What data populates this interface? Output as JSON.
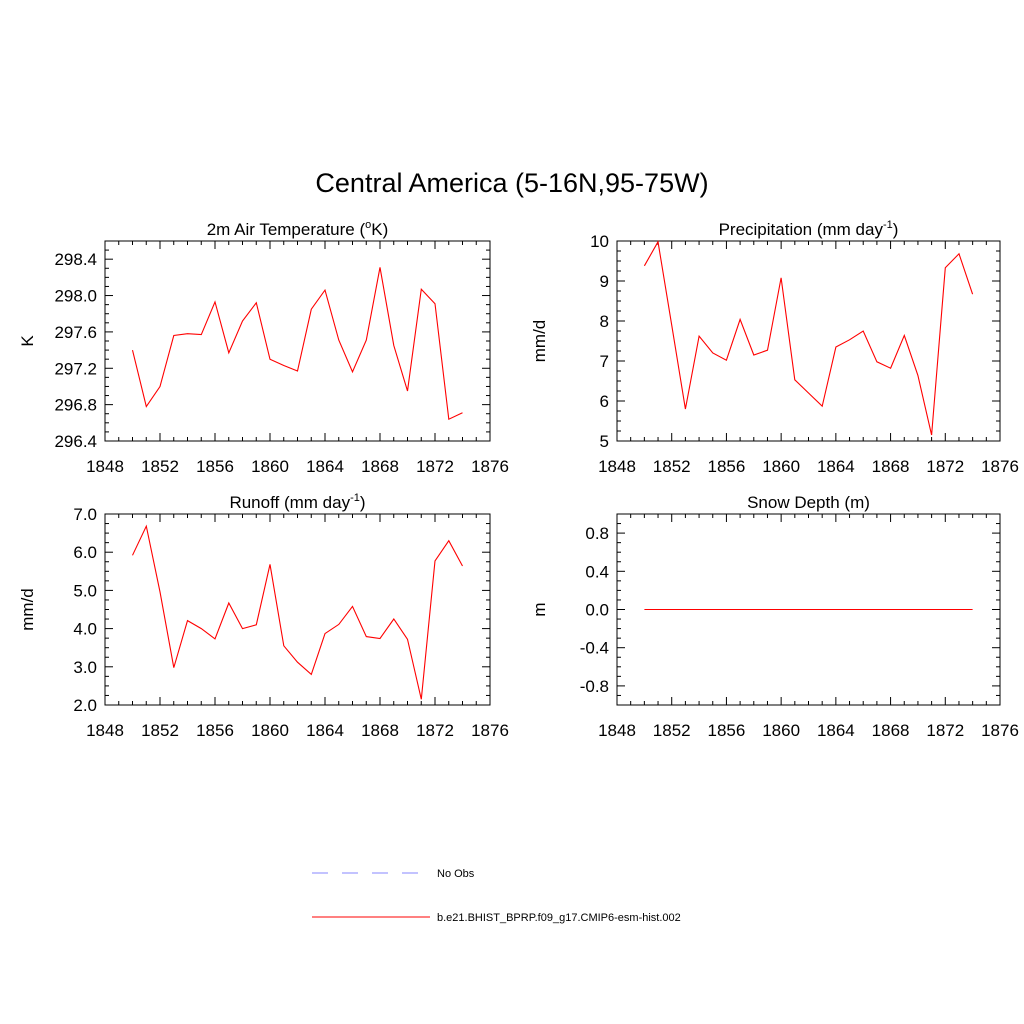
{
  "title": "Central America (5-16N,95-75W)",
  "colors": {
    "model": "#ff0000",
    "obs": "#9f9fff"
  },
  "legend": [
    {
      "label": "No Obs",
      "style": "dashed",
      "color": "#9f9fff"
    },
    {
      "label": "b.e21.BHIST_BPRP.f09_g17.CMIP6-esm-hist.002",
      "style": "solid",
      "color": "#ff0000"
    }
  ],
  "chart_data": [
    {
      "type": "line",
      "title": "2m Air Temperature (",
      "title_sup": "o",
      "title_after": "K)",
      "ylabel": "K",
      "xlim": [
        1848,
        1876
      ],
      "ylim": [
        296.4,
        298.6
      ],
      "xticks": [
        "1848",
        "1852",
        "1856",
        "1860",
        "1864",
        "1868",
        "1872",
        "1876"
      ],
      "yticks": [
        "296.4",
        "296.8",
        "297.2",
        "297.6",
        "298.0",
        "298.4"
      ],
      "x": [
        1850,
        1851,
        1852,
        1853,
        1854,
        1855,
        1856,
        1857,
        1858,
        1859,
        1860,
        1861,
        1862,
        1863,
        1864,
        1865,
        1866,
        1867,
        1868,
        1869,
        1870,
        1871,
        1872,
        1873,
        1874
      ],
      "series": [
        {
          "values": [
            297.4,
            296.78,
            297.0,
            297.56,
            297.58,
            297.57,
            297.93,
            297.37,
            297.72,
            297.92,
            297.3,
            297.23,
            297.17,
            297.85,
            298.06,
            297.51,
            297.16,
            297.51,
            298.31,
            297.45,
            296.95,
            298.07,
            297.91,
            296.64,
            296.71
          ]
        }
      ]
    },
    {
      "type": "line",
      "title": "Precipitation (mm day",
      "title_sup": "-1",
      "title_after": ")",
      "ylabel": "mm/d",
      "xlim": [
        1848,
        1876
      ],
      "ylim": [
        5,
        10
      ],
      "xticks": [
        "1848",
        "1852",
        "1856",
        "1860",
        "1864",
        "1868",
        "1872",
        "1876"
      ],
      "yticks": [
        "5",
        "6",
        "7",
        "8",
        "9",
        "10"
      ],
      "x": [
        1850,
        1851,
        1852,
        1853,
        1854,
        1855,
        1856,
        1857,
        1858,
        1859,
        1860,
        1861,
        1862,
        1863,
        1864,
        1865,
        1866,
        1867,
        1868,
        1869,
        1870,
        1871,
        1872,
        1873,
        1874
      ],
      "series": [
        {
          "values": [
            9.38,
            9.98,
            7.9,
            5.8,
            7.62,
            7.2,
            7.02,
            8.04,
            7.15,
            7.27,
            9.08,
            6.53,
            6.2,
            5.87,
            7.35,
            7.53,
            7.75,
            6.98,
            6.82,
            7.64,
            6.64,
            5.15,
            9.33,
            9.68,
            8.67
          ]
        }
      ]
    },
    {
      "type": "line",
      "title": "Runoff (mm day",
      "title_sup": "-1",
      "title_after": ")",
      "ylabel": "mm/d",
      "xlim": [
        1848,
        1876
      ],
      "ylim": [
        2.0,
        7.0
      ],
      "xticks": [
        "1848",
        "1852",
        "1856",
        "1860",
        "1864",
        "1868",
        "1872",
        "1876"
      ],
      "yticks": [
        "2.0",
        "3.0",
        "4.0",
        "5.0",
        "6.0",
        "7.0"
      ],
      "x": [
        1850,
        1851,
        1852,
        1853,
        1854,
        1855,
        1856,
        1857,
        1858,
        1859,
        1860,
        1861,
        1862,
        1863,
        1864,
        1865,
        1866,
        1867,
        1868,
        1869,
        1870,
        1871,
        1872,
        1873,
        1874
      ],
      "series": [
        {
          "values": [
            5.92,
            6.68,
            4.96,
            2.98,
            4.21,
            4.0,
            3.73,
            4.67,
            4.0,
            4.1,
            5.68,
            3.55,
            3.12,
            2.8,
            3.87,
            4.11,
            4.58,
            3.79,
            3.74,
            4.25,
            3.72,
            2.15,
            5.77,
            6.3,
            5.64
          ]
        }
      ]
    },
    {
      "type": "line",
      "title": "Snow Depth (m)",
      "title_sup": "",
      "title_after": "",
      "ylabel": "m",
      "xlim": [
        1848,
        1876
      ],
      "ylim": [
        -1.0,
        1.0
      ],
      "xticks": [
        "1848",
        "1852",
        "1856",
        "1860",
        "1864",
        "1868",
        "1872",
        "1876"
      ],
      "yticks": [
        "-0.8",
        "-0.4",
        "0.0",
        "0.4",
        "0.8"
      ],
      "x": [
        1850,
        1874
      ],
      "series": [
        {
          "values": [
            0.0,
            0.0
          ]
        }
      ]
    }
  ]
}
